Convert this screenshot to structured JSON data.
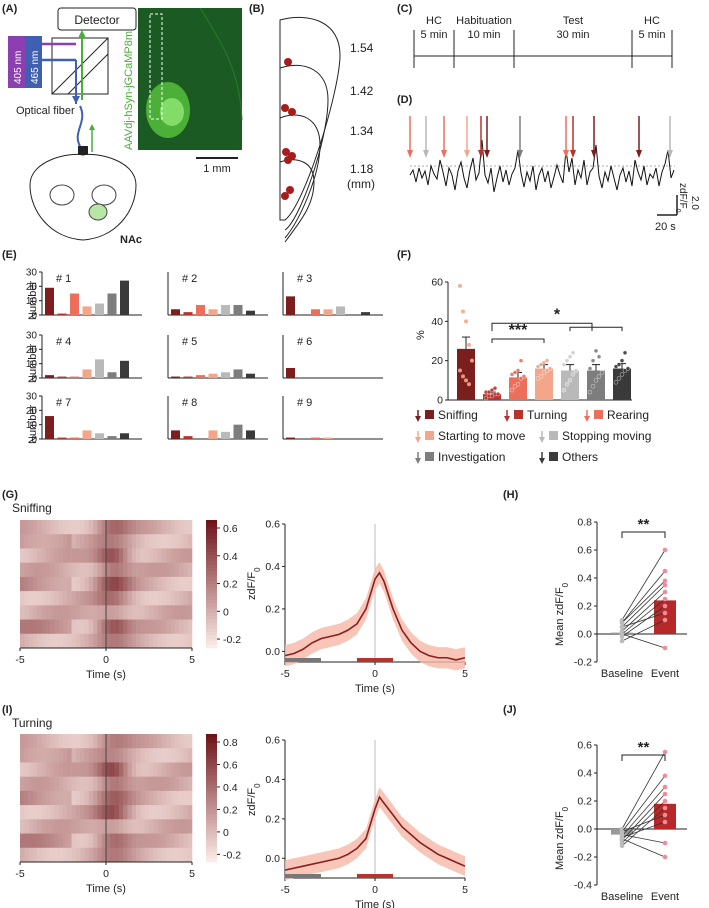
{
  "panels": {
    "A": {
      "label": "(A)",
      "detector": "Detector",
      "wavelength_405": "405 nm",
      "wavelength_465": "465 nm",
      "optical_fiber": "Optical fiber",
      "virus": "AAVdj-hSyn-jGCaMP8m",
      "scale": "1 mm",
      "region": "NAc"
    },
    "B": {
      "label": "(B)",
      "levels": [
        "1.54",
        "1.42",
        "1.34",
        "1.18"
      ],
      "unit": "(mm)"
    },
    "C": {
      "label": "(C)",
      "phases": [
        {
          "name": "HC",
          "duration": "5 min"
        },
        {
          "name": "Habituation",
          "duration": "10 min"
        },
        {
          "name": "Test",
          "duration": "30 min"
        },
        {
          "name": "HC",
          "duration": "5 min"
        }
      ]
    },
    "D": {
      "label": "(D)",
      "scale_y": "2.0",
      "scale_y_unit": "zdF/F",
      "scale_y_sub": "0",
      "scale_x": "20 s"
    },
    "E": {
      "label": "(E)",
      "ylabel": "Number"
    },
    "F": {
      "label": "(F)",
      "ylabel": "%"
    },
    "G": {
      "label": "(G)",
      "behavior": "Sniffing"
    },
    "H": {
      "label": "(H)"
    },
    "I": {
      "label": "(I)",
      "behavior": "Turning"
    },
    "J": {
      "label": "(J)"
    }
  },
  "colors": {
    "sniffing": "#7a1e1e",
    "turning": "#b8322e",
    "rearing": "#ec6f5c",
    "starting": "#f4a68a",
    "stopping": "#b9b9b9",
    "investigation": "#7d7d7d",
    "others": "#3a3a3a"
  },
  "legend": [
    {
      "key": "sniffing",
      "label": "Sniffing"
    },
    {
      "key": "turning",
      "label": "Turning"
    },
    {
      "key": "rearing",
      "label": "Rearing"
    },
    {
      "key": "starting",
      "label": "Starting to move"
    },
    {
      "key": "stopping",
      "label": "Stopping moving"
    },
    {
      "key": "investigation",
      "label": "Investigation"
    },
    {
      "key": "others",
      "label": "Others"
    }
  ],
  "chart_data": [
    {
      "id": "E",
      "type": "bar",
      "ylabel": "Number",
      "ylim": [
        0,
        30
      ],
      "yticks": [
        0,
        10,
        20,
        30
      ],
      "categories": [
        "Sniffing",
        "Turning",
        "Rearing",
        "Starting to move",
        "Stopping moving",
        "Investigation",
        "Others"
      ],
      "mice": [
        {
          "label": "# 1",
          "values": [
            19,
            1,
            15,
            6,
            8,
            15,
            24
          ]
        },
        {
          "label": "# 2",
          "values": [
            4,
            2,
            7,
            4,
            7,
            7,
            3
          ]
        },
        {
          "label": "# 3",
          "values": [
            13,
            0,
            4,
            4,
            6,
            0,
            2
          ]
        },
        {
          "label": "# 4",
          "values": [
            2,
            1,
            1,
            6,
            13,
            4,
            12
          ]
        },
        {
          "label": "# 5",
          "values": [
            1,
            1,
            2,
            3,
            4,
            6,
            3
          ]
        },
        {
          "label": "# 6",
          "values": [
            7,
            0,
            0,
            0,
            0,
            0,
            0
          ]
        },
        {
          "label": "# 7",
          "values": [
            16,
            1,
            1,
            6,
            4,
            2,
            4
          ]
        },
        {
          "label": "# 8",
          "values": [
            6,
            2,
            0,
            6,
            5,
            10,
            6
          ]
        },
        {
          "label": "# 9",
          "values": [
            1,
            0,
            1,
            1,
            0,
            0,
            0
          ]
        }
      ]
    },
    {
      "id": "F",
      "type": "bar",
      "ylabel": "%",
      "ylim": [
        0,
        60
      ],
      "yticks": [
        0,
        20,
        40,
        60
      ],
      "categories": [
        "Sniffing",
        "Turning",
        "Rearing",
        "Starting to move",
        "Stopping moving",
        "Investigation",
        "Others"
      ],
      "means": [
        26,
        3,
        11.5,
        16,
        15,
        15,
        16
      ],
      "errors": [
        6,
        1,
        2.5,
        2,
        3,
        3,
        2.5
      ],
      "points": [
        [
          58,
          45,
          40,
          28,
          20,
          15,
          12,
          10,
          8
        ],
        [
          1,
          2,
          2,
          3,
          3,
          4,
          4,
          5,
          6
        ],
        [
          5,
          7,
          8,
          11,
          12,
          13,
          14,
          15,
          20
        ],
        [
          11,
          12,
          14,
          15,
          16,
          17,
          18,
          19,
          20
        ],
        [
          5,
          8,
          10,
          13,
          15,
          18,
          20,
          22,
          24
        ],
        [
          4,
          7,
          10,
          12,
          14,
          16,
          20,
          25,
          22
        ],
        [
          9,
          11,
          13,
          15,
          16,
          17,
          18,
          20,
          24
        ]
      ],
      "significance": [
        "***",
        "*"
      ]
    },
    {
      "id": "G-trace",
      "type": "line",
      "xlabel": "Time (s)",
      "ylabel": "zdF/F0",
      "xlim": [
        -5,
        5
      ],
      "ylim": [
        -0.05,
        0.6
      ],
      "xticks": [
        -5,
        0,
        5
      ],
      "yticks": [
        0.0,
        0.2,
        0.4,
        0.6
      ],
      "x": [
        -5,
        -4.5,
        -4,
        -3.5,
        -3,
        -2.5,
        -2,
        -1.5,
        -1,
        -0.5,
        0,
        0.25,
        0.5,
        1,
        1.5,
        2,
        2.5,
        3,
        3.5,
        4,
        4.5,
        5
      ],
      "y": [
        -0.02,
        -0.01,
        0.01,
        0.04,
        0.06,
        0.07,
        0.08,
        0.1,
        0.13,
        0.2,
        0.34,
        0.37,
        0.33,
        0.2,
        0.1,
        0.04,
        0.0,
        -0.02,
        -0.03,
        -0.03,
        -0.04,
        -0.03
      ],
      "sem": 0.05,
      "baseline_window": [
        -5,
        -3
      ],
      "event_window": [
        -1,
        1
      ]
    },
    {
      "id": "G-heatmap",
      "type": "heatmap",
      "xlabel": "Time (s)",
      "xticks": [
        -5,
        0,
        5
      ],
      "colorbar_ticks": [
        0.6,
        0.4,
        0.2,
        0.0,
        -0.2
      ],
      "rows": 9
    },
    {
      "id": "H",
      "type": "bar",
      "ylabel": "Mean zdF/F0",
      "categories": [
        "Baseline",
        "Event"
      ],
      "means": [
        0.01,
        0.24
      ],
      "errors": [
        0.02,
        0.07
      ],
      "ylim": [
        -0.2,
        0.8
      ],
      "yticks": [
        -0.2,
        0.0,
        0.2,
        0.4,
        0.6,
        0.8
      ],
      "pairs": [
        [
          0.1,
          0.6
        ],
        [
          0.08,
          0.45
        ],
        [
          0.05,
          0.35
        ],
        [
          0.02,
          0.3
        ],
        [
          0.0,
          0.25
        ],
        [
          -0.02,
          0.2
        ],
        [
          0.05,
          0.15
        ],
        [
          -0.05,
          0.1
        ],
        [
          0.0,
          -0.1
        ],
        [
          0.08,
          0.38
        ]
      ],
      "significance": "**"
    },
    {
      "id": "I-trace",
      "type": "line",
      "xlabel": "Time (s)",
      "ylabel": "zdF/F0",
      "xlim": [
        -5,
        5
      ],
      "ylim": [
        -0.1,
        0.6
      ],
      "xticks": [
        -5,
        0,
        5
      ],
      "yticks": [
        0.0,
        0.2,
        0.4,
        0.6
      ],
      "x": [
        -5,
        -4.5,
        -4,
        -3.5,
        -3,
        -2.5,
        -2,
        -1.5,
        -1,
        -0.5,
        0,
        0.25,
        0.5,
        1,
        1.5,
        2,
        2.5,
        3,
        3.5,
        4,
        4.5,
        5
      ],
      "y": [
        -0.06,
        -0.05,
        -0.04,
        -0.03,
        -0.02,
        -0.01,
        0.0,
        0.02,
        0.05,
        0.1,
        0.25,
        0.31,
        0.28,
        0.22,
        0.16,
        0.12,
        0.08,
        0.05,
        0.02,
        0.0,
        -0.02,
        -0.04
      ],
      "sem": 0.05,
      "baseline_window": [
        -5,
        -3
      ],
      "event_window": [
        -1,
        1
      ]
    },
    {
      "id": "I-heatmap",
      "type": "heatmap",
      "xlabel": "Time (s)",
      "xticks": [
        -5,
        0,
        5
      ],
      "colorbar_ticks": [
        0.8,
        0.6,
        0.4,
        0.2,
        0.0,
        -0.2
      ],
      "rows": 9
    },
    {
      "id": "J",
      "type": "bar",
      "ylabel": "Mean zdF/F0",
      "categories": [
        "Baseline",
        "Event"
      ],
      "means": [
        -0.04,
        0.18
      ],
      "errors": [
        0.02,
        0.07
      ],
      "ylim": [
        -0.4,
        0.6
      ],
      "yticks": [
        -0.4,
        -0.2,
        0.0,
        0.2,
        0.4,
        0.6
      ],
      "pairs": [
        [
          0.0,
          0.55
        ],
        [
          -0.02,
          0.38
        ],
        [
          -0.05,
          0.3
        ],
        [
          -0.08,
          0.25
        ],
        [
          -0.1,
          0.2
        ],
        [
          -0.12,
          0.15
        ],
        [
          -0.02,
          0.1
        ],
        [
          -0.06,
          0.05
        ],
        [
          -0.04,
          -0.1
        ],
        [
          -0.07,
          -0.2
        ]
      ],
      "significance": "**"
    }
  ]
}
